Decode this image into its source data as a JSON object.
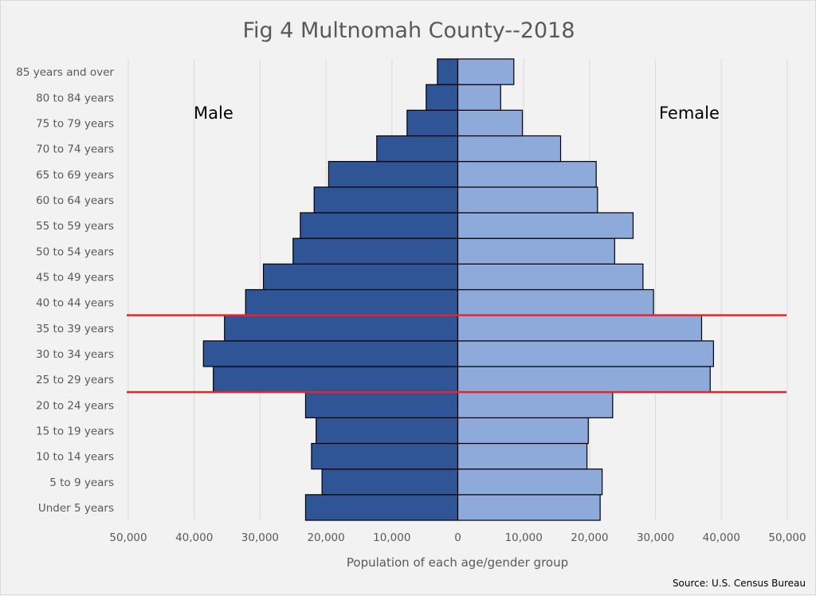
{
  "chart_data": {
    "type": "bar",
    "subtype": "population-pyramid",
    "title": "Fig 4 Multnomah County--2018",
    "xlabel": "Population of each age/gender group",
    "ylabel": "",
    "source": "Source: U.S. Census Bureau",
    "xlim": [
      -50000,
      50000
    ],
    "x_ticks": [
      -50000,
      -40000,
      -30000,
      -20000,
      -10000,
      0,
      10000,
      20000,
      30000,
      40000,
      50000
    ],
    "x_tick_labels": [
      "50,000",
      "40,000",
      "30,000",
      "20,000",
      "10,000",
      "0",
      "10,000",
      "20,000",
      "30,000",
      "40,000",
      "50,000"
    ],
    "grid": "vertical",
    "categories": [
      "Under 5 years",
      "5 to 9 years",
      "10 to 14 years",
      "15 to 19 years",
      "20 to 24 years",
      "25 to 29 years",
      "30 to 34 years",
      "35 to 39 years",
      "40 to 44 years",
      "45 to 49 years",
      "50 to 54 years",
      "55 to 59 years",
      "60 to 64 years",
      "65 to 69 years",
      "70 to 74 years",
      "75 to 79 years",
      "80 to 84 years",
      "85 years and over"
    ],
    "series": [
      {
        "name": "Male",
        "side": "left",
        "color": "#2f5597",
        "values": [
          23100,
          20600,
          22200,
          21500,
          23100,
          37100,
          38600,
          35400,
          32200,
          29500,
          25000,
          23900,
          21800,
          19600,
          12300,
          7700,
          4800,
          3100
        ]
      },
      {
        "name": "Female",
        "side": "right",
        "color": "#8eaadb",
        "values": [
          21600,
          21900,
          19600,
          19800,
          23500,
          38300,
          38800,
          37000,
          29700,
          28100,
          23800,
          26600,
          21200,
          21000,
          15600,
          9800,
          6500,
          8500
        ]
      }
    ],
    "annotations": [
      {
        "type": "text",
        "text": "Male",
        "position": "upper-left"
      },
      {
        "type": "text",
        "text": "Female",
        "position": "upper-right"
      },
      {
        "type": "horizontal-line",
        "color": "#e8242b",
        "between_categories": [
          "35 to 39 years",
          "40 to 44 years"
        ]
      },
      {
        "type": "horizontal-line",
        "color": "#e8242b",
        "between_categories": [
          "20 to 24 years",
          "25 to 29 years"
        ]
      }
    ],
    "bar_outline_color": "#000000",
    "gridline_color": "#d9d9d9"
  }
}
